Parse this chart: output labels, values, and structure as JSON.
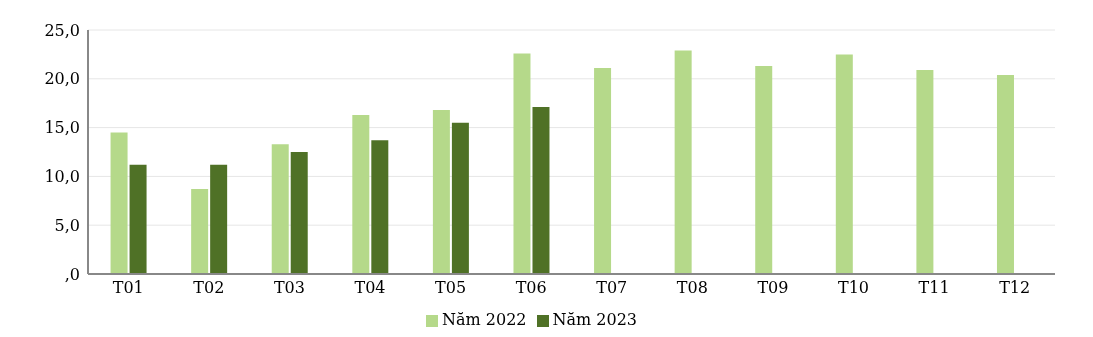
{
  "chart_data": {
    "type": "bar",
    "categories": [
      "T01",
      "T02",
      "T03",
      "T04",
      "T05",
      "T06",
      "T07",
      "T08",
      "T09",
      "T10",
      "T11",
      "T12"
    ],
    "series": [
      {
        "name": "Năm 2022",
        "color": "#b5d98a",
        "values": [
          14.5,
          8.7,
          13.3,
          16.3,
          16.8,
          22.6,
          21.1,
          22.9,
          21.3,
          22.5,
          20.9,
          20.4
        ]
      },
      {
        "name": "Năm 2023",
        "color": "#4f7126",
        "values": [
          11.2,
          11.2,
          12.5,
          13.7,
          15.5,
          17.1,
          null,
          null,
          null,
          null,
          null,
          null
        ]
      }
    ],
    "ylim": [
      0,
      25
    ],
    "yticks": [
      {
        "value": 0,
        "label": ",0"
      },
      {
        "value": 5,
        "label": "5,0"
      },
      {
        "value": 10,
        "label": "10,0"
      },
      {
        "value": 15,
        "label": "15,0"
      },
      {
        "value": 20,
        "label": "20,0"
      },
      {
        "value": 25,
        "label": "25,0"
      }
    ],
    "grid": "y",
    "legend": "bottom"
  }
}
